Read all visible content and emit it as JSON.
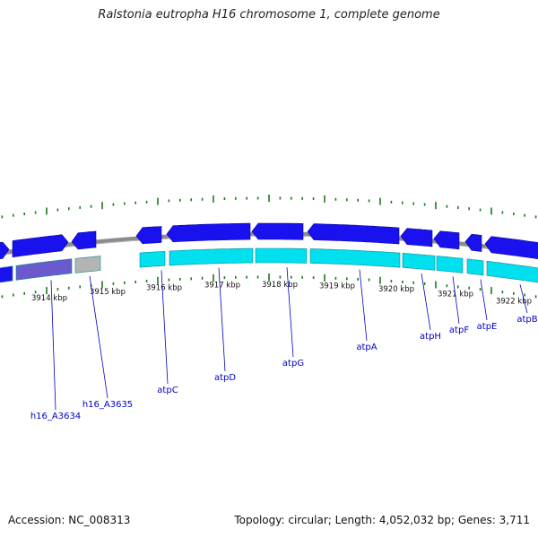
{
  "title": "Ralstonia eutropha H16 chromosome 1, complete genome",
  "footer": {
    "accession": "Accession: NC_008313",
    "topology": "Topology: circular; Length: 4,052,032 bp; Genes: 3,711"
  },
  "colors": {
    "gene_outer": "#1a12ee",
    "gene_inner": "#00e0ee",
    "gene_inner_grey": "#b4b4b4",
    "gene_inner_purple": "#6a5acd",
    "backbone": "#8c8c8c",
    "tick": "#1a7a1a",
    "gene_label": "#0000c8"
  },
  "kbp_labels": [
    "3914 kbp",
    "3915 kbp",
    "3916 kbp",
    "3917 kbp",
    "3918 kbp",
    "3919 kbp",
    "3920 kbp",
    "3921 kbp",
    "3922 kbp"
  ],
  "gene_labels": [
    "h16_A3634",
    "h16_A3635",
    "atpC",
    "atpD",
    "atpG",
    "atpA",
    "atpH",
    "atpF",
    "atpE",
    "atpB"
  ]
}
